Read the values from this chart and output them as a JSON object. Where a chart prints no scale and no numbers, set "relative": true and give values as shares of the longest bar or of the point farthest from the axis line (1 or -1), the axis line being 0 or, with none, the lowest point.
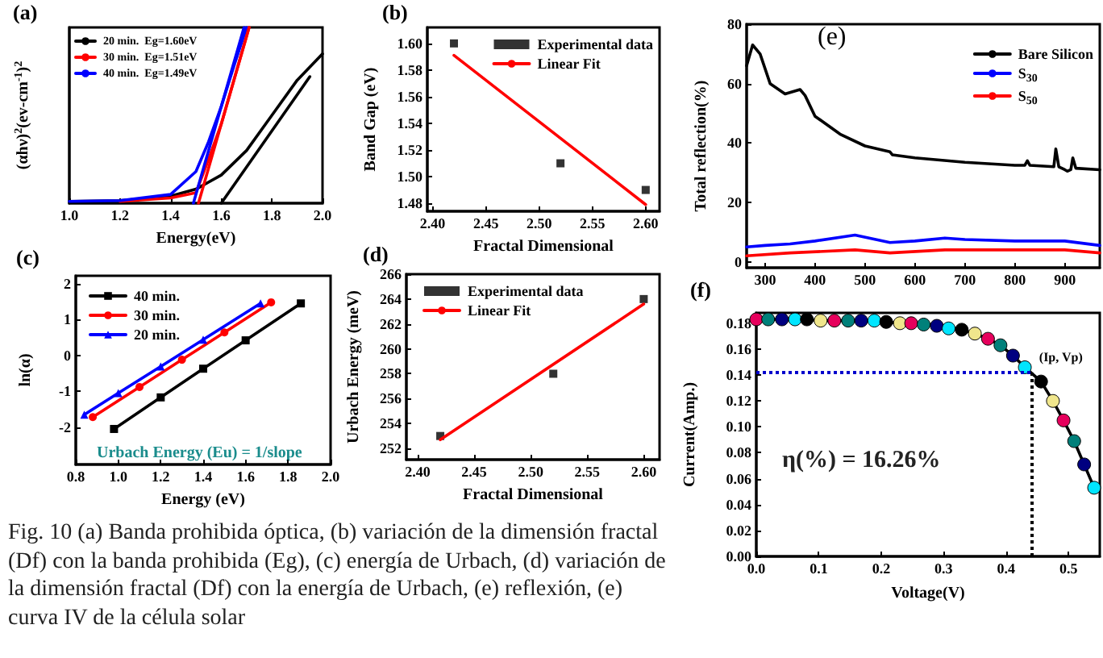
{
  "chart_data": [
    {
      "type": "line",
      "title": "(a)",
      "xlabel": "Energy(eV)",
      "ylabel": "(αhν)$^{2}$(ev-cm$^{-1}$)$^{2}$",
      "relative": true,
      "legend": "top left",
      "xlim": [
        1.0,
        2.0
      ],
      "xticks": [
        {
          "value": 1.0,
          "label": "1.0"
        },
        1.2,
        1.4,
        1.6,
        1.8,
        {
          "value": 2.0,
          "label": "2.0"
        }
      ],
      "series": [
        {
          "name": "20 min.  Eg=1.60eV",
          "color": "#000000",
          "x": [
            1.0,
            1.2,
            1.4,
            1.5,
            1.6,
            1.7,
            1.8,
            1.9,
            2.0
          ],
          "values": [
            0.01,
            0.015,
            0.04,
            0.08,
            0.16,
            0.3,
            0.5,
            0.7,
            0.85
          ]
        },
        {
          "name": "30 min.  Eg=1.51eV",
          "color": "#ff0000",
          "x": [
            1.2,
            1.4,
            1.5,
            1.55,
            1.6,
            1.65,
            1.7,
            1.71
          ],
          "values": [
            0.01,
            0.03,
            0.06,
            0.25,
            0.45,
            0.7,
            0.95,
            1
          ]
        },
        {
          "name": "40 min.  Eg=1.49eV",
          "color": "#0000ff",
          "x": [
            1.0,
            1.2,
            1.4,
            1.5,
            1.55,
            1.6,
            1.65,
            1.7
          ],
          "values": [
            0.01,
            0.015,
            0.05,
            0.18,
            0.35,
            0.55,
            0.78,
            1
          ]
        },
        {
          "color": "#000000",
          "x": [
            1.6,
            1.95
          ],
          "values": [
            0,
            0.72
          ]
        },
        {
          "color": "#ff0000",
          "x": [
            1.51,
            1.71
          ],
          "values": [
            0,
            1
          ]
        },
        {
          "color": "#0000ff",
          "x": [
            1.49,
            1.69
          ],
          "values": [
            0,
            1
          ]
        }
      ]
    },
    {
      "type": "line",
      "title": "(b)",
      "xlabel": "Fractal Dimensional",
      "ylabel": "Band Gap (eV)",
      "legend": "top right",
      "xlim": [
        2.395,
        2.613
      ],
      "xticks": [
        {
          "value": 2.4,
          "label": "2.40"
        },
        2.45,
        {
          "value": 2.5,
          "label": "2.50"
        },
        2.55,
        {
          "value": 2.6,
          "label": "2.60"
        }
      ],
      "ylim": [
        1.474,
        1.612
      ],
      "yticks": [
        1.48,
        {
          "value": 1.5,
          "label": "1.50"
        },
        1.52,
        1.54,
        1.56,
        1.58,
        {
          "value": 1.6,
          "label": "1.60"
        }
      ],
      "series": [
        {
          "name": "Experimental data",
          "type": "scatter",
          "marker": "square",
          "color": "#000000",
          "x": [
            2.42,
            2.52,
            2.6
          ],
          "values": [
            1.6,
            1.51,
            1.49
          ]
        },
        {
          "name": "Linear Fit",
          "color": "#ff0000",
          "x": [
            2.42,
            2.6
          ],
          "values": [
            1.591,
            1.479
          ]
        }
      ]
    },
    {
      "type": "line",
      "title": "(e)",
      "ylabel": "Total reflection(%)",
      "legend": "top right",
      "xlim": [
        263,
        970
      ],
      "xticks": [
        300,
        400,
        500,
        600,
        700,
        800,
        900
      ],
      "ylim": [
        -2,
        80
      ],
      "yticks": [
        0,
        20,
        40,
        60,
        80
      ],
      "series": [
        {
          "name": "Bare Silicon",
          "color": "#000000",
          "x": [
            263,
            275,
            290,
            310,
            340,
            370,
            380,
            400,
            450,
            500,
            550,
            555,
            600,
            700,
            800,
            820,
            825,
            830,
            878,
            882,
            888,
            900,
            905,
            912,
            916,
            922,
            970
          ],
          "values": [
            66,
            73,
            70,
            60,
            56.5,
            58,
            56,
            49,
            43,
            39,
            37,
            36,
            35,
            33.5,
            32.5,
            32.5,
            34,
            32.5,
            32,
            38,
            32,
            31,
            30.5,
            31,
            35,
            31.5,
            31
          ]
        },
        {
          "name": "S$_{30}$",
          "color": "#0000ff",
          "x": [
            263,
            300,
            350,
            400,
            480,
            550,
            600,
            660,
            700,
            800,
            900,
            970
          ],
          "values": [
            5,
            5.5,
            6,
            7,
            9,
            6.5,
            7,
            8,
            7.5,
            7,
            7,
            5.5
          ]
        },
        {
          "name": "S$_{50}$",
          "color": "#ff0000",
          "x": [
            263,
            350,
            480,
            550,
            660,
            800,
            900,
            970
          ],
          "values": [
            2,
            3,
            4,
            3,
            4,
            4,
            4,
            3
          ]
        }
      ]
    },
    {
      "type": "line",
      "title": "(c)",
      "xlabel": "Energy (eV)",
      "ylabel": "ln(α)",
      "legend": "top left",
      "xlim": [
        0.8,
        2.0
      ],
      "xticks": [
        0.8,
        {
          "value": 1.0,
          "label": "1.0"
        },
        1.2,
        1.4,
        1.6,
        1.8,
        {
          "value": 2.0,
          "label": "2.0"
        }
      ],
      "ylim": [
        -3.04,
        2.22
      ],
      "yticks": [
        -2,
        -1,
        0,
        1,
        2
      ],
      "annotations": [
        "Urbach Energy (Eu) = 1/slope"
      ],
      "series": [
        {
          "name": "40 min.",
          "marker": "square",
          "color": "#000000",
          "x": [
            0.98,
            1.2,
            1.4,
            1.6,
            1.86
          ],
          "values": [
            -2.05,
            -1.17,
            -0.37,
            0.42,
            1.45
          ]
        },
        {
          "name": "30 min.",
          "marker": "circle",
          "color": "#ff0000",
          "x": [
            0.88,
            1.1,
            1.3,
            1.5,
            1.72
          ],
          "values": [
            -1.72,
            -0.88,
            -0.12,
            0.64,
            1.48
          ]
        },
        {
          "name": "20 min.",
          "marker": "triangle",
          "color": "#0000ff",
          "x": [
            0.84,
            1.0,
            1.2,
            1.4,
            1.67
          ],
          "values": [
            -1.65,
            -1.05,
            -0.31,
            0.44,
            1.45
          ]
        }
      ]
    },
    {
      "type": "line",
      "title": "(d)",
      "xlabel": "Fractal Dimensional",
      "ylabel": "Urbach Energy (meV)",
      "legend": "top left",
      "xlim": [
        2.39,
        2.614
      ],
      "xticks": [
        {
          "value": 2.4,
          "label": "2.40"
        },
        2.45,
        {
          "value": 2.5,
          "label": "2.50"
        },
        2.55,
        {
          "value": 2.6,
          "label": "2.60"
        }
      ],
      "ylim": [
        251.1,
        266
      ],
      "yticks": [
        252,
        254,
        256,
        258,
        260,
        262,
        264,
        266
      ],
      "series": [
        {
          "name": "Experimental data",
          "type": "scatter",
          "marker": "square",
          "color": "#000000",
          "x": [
            2.42,
            2.52,
            2.6
          ],
          "values": [
            253,
            258,
            264
          ]
        },
        {
          "name": "Linear Fit",
          "color": "#ff0000",
          "x": [
            2.42,
            2.6
          ],
          "values": [
            252.7,
            263.6
          ]
        }
      ]
    },
    {
      "type": "line",
      "title": "(f)",
      "xlabel": "Voltage(V)",
      "ylabel": "Current(Amp.)",
      "xlim": [
        0,
        0.55
      ],
      "xticks": [
        {
          "value": 0,
          "label": "0.0"
        },
        0.1,
        0.2,
        0.3,
        0.4,
        0.5
      ],
      "ylim": [
        0,
        0.188
      ],
      "yticks": [
        {
          "value": 0,
          "label": "0.00"
        },
        0.02,
        0.04,
        0.06,
        0.08,
        {
          "value": 0.1,
          "label": "0.10"
        },
        0.12,
        0.14,
        0.16,
        0.18
      ],
      "marker": "circle",
      "annotations": [
        {
          "text": "(Ip, Vp)",
          "x": 0.44,
          "y": 0.146
        },
        "η(%) = 16.26%"
      ],
      "ref_lines": [
        {
          "axis": "y",
          "value": 0.142,
          "color": "#0000cc",
          "line_style": "dotted"
        },
        {
          "axis": "x",
          "value": 0.44,
          "color": "#000000",
          "line_style": "dotted"
        }
      ],
      "series": [
        {
          "color": "#000000",
          "x": [
            0,
            0.019,
            0.041,
            0.062,
            0.081,
            0.103,
            0.125,
            0.147,
            0.168,
            0.189,
            0.208,
            0.23,
            0.248,
            0.268,
            0.289,
            0.308,
            0.329,
            0.35,
            0.371,
            0.391,
            0.411,
            0.43,
            0.456,
            0.475,
            0.492,
            0.509,
            0.525,
            0.541
          ],
          "values": [
            0.183,
            0.183,
            0.183,
            0.183,
            0.183,
            0.182,
            0.182,
            0.182,
            0.182,
            0.182,
            0.181,
            0.18,
            0.18,
            0.179,
            0.178,
            0.176,
            0.175,
            0.172,
            0.168,
            0.163,
            0.155,
            0.146,
            0.135,
            0.12,
            0.105,
            0.089,
            0.071,
            0.053
          ],
          "colors": [
            "#e6005c",
            "#00807a",
            "#000080",
            "#00e5ff",
            "#000000",
            "#f0e68c",
            "#e6005c",
            "#00807a",
            "#000080",
            "#00e5ff",
            "#000000",
            "#f0e68c",
            "#e6005c",
            "#00807a",
            "#000080",
            "#00e5ff",
            "#000000",
            "#f0e68c",
            "#e6005c",
            "#00807a",
            "#000080",
            "#00e5ff",
            "#000000",
            "#f0e68c",
            "#e6005c",
            "#00807a",
            "#000080",
            "#00e5ff"
          ]
        }
      ]
    },
    {
      "type": "other",
      "annotations": [
        "Fig. 10 (a) Banda prohibida óptica, (b) variación de la dimensión fractal (Df) con la banda prohibida (Eg), (c) energía de Urbach, (d) variación de la dimensión fractal (Df) con la energía de Urbach, (e) reflexión, (e) curva IV de la célula solar"
      ]
    }
  ]
}
